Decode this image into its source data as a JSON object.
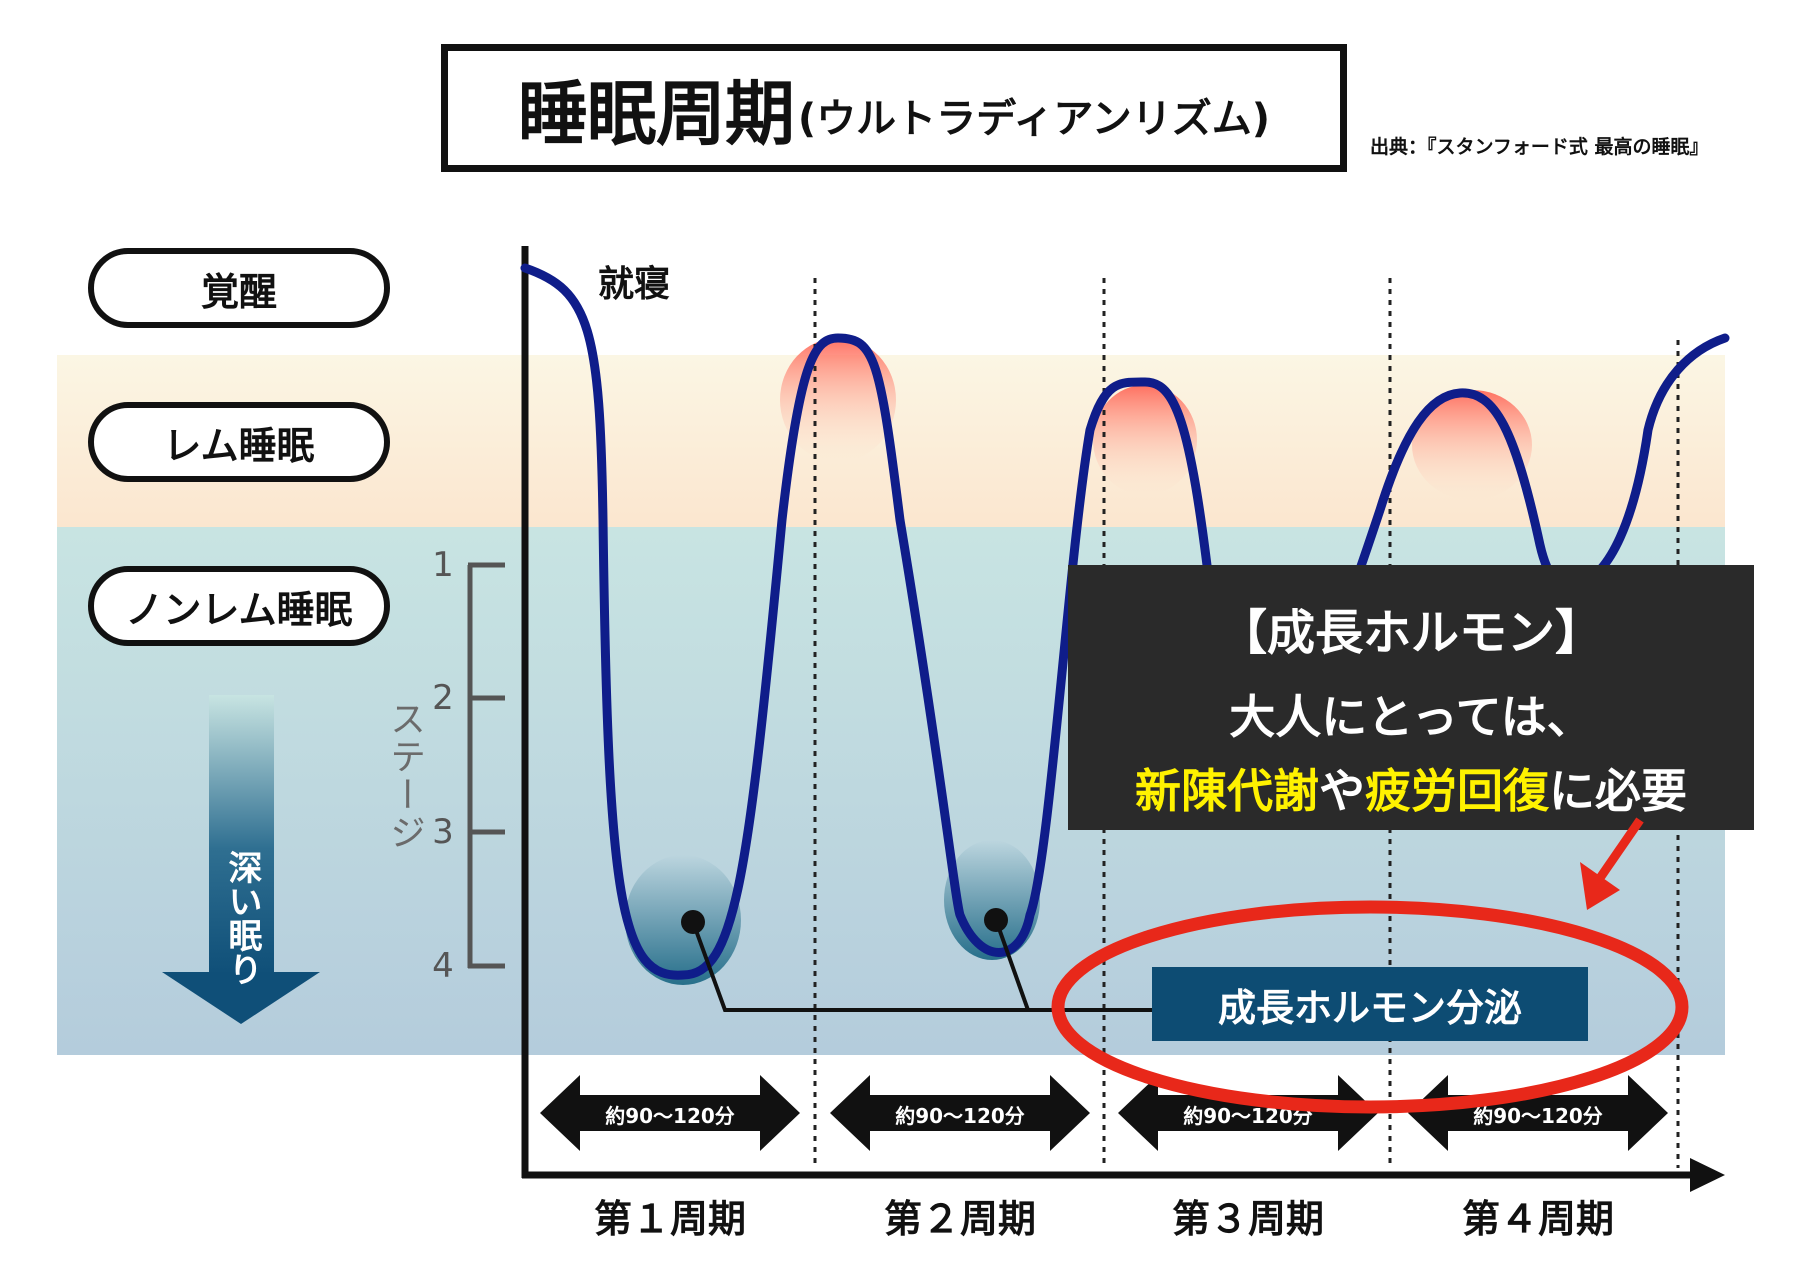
{
  "title": {
    "main": "睡眠周期",
    "sub": "(ウルトラディアンリズム)"
  },
  "source": "出典：『スタンフォード式 最高の睡眠』",
  "states": {
    "wake": "覚醒",
    "rem": "レム睡眠",
    "nrem": "ノンレム睡眠"
  },
  "deep_sleep": "深い眠り",
  "stage": {
    "label": "ステージ",
    "ticks": [
      "1",
      "2",
      "3",
      "4"
    ]
  },
  "sleep_onset": "就寝",
  "callout": {
    "heading": "【成長ホルモン】",
    "line1": "大人にとっては、",
    "line2_hl1": "新陳代謝",
    "line2_mid": "や",
    "line2_hl2": "疲労回復",
    "line2_end": "に必要"
  },
  "hormone_label": "成長ホルモン分泌",
  "cycles": [
    {
      "label": "第１周期",
      "duration": "約90〜120分"
    },
    {
      "label": "第２周期",
      "duration": "約90〜120分"
    },
    {
      "label": "第３周期",
      "duration": "約90〜120分"
    },
    {
      "label": "第４周期",
      "duration": "約90〜120分"
    }
  ],
  "colors": {
    "curve": "#0f1d8a",
    "rem_peak": "#ff6a5a",
    "deep_fill": "#1f6a86",
    "callout_highlight": "#fff200",
    "ellipse": "#e8281a",
    "hormone_box": "#0d4c73"
  }
}
